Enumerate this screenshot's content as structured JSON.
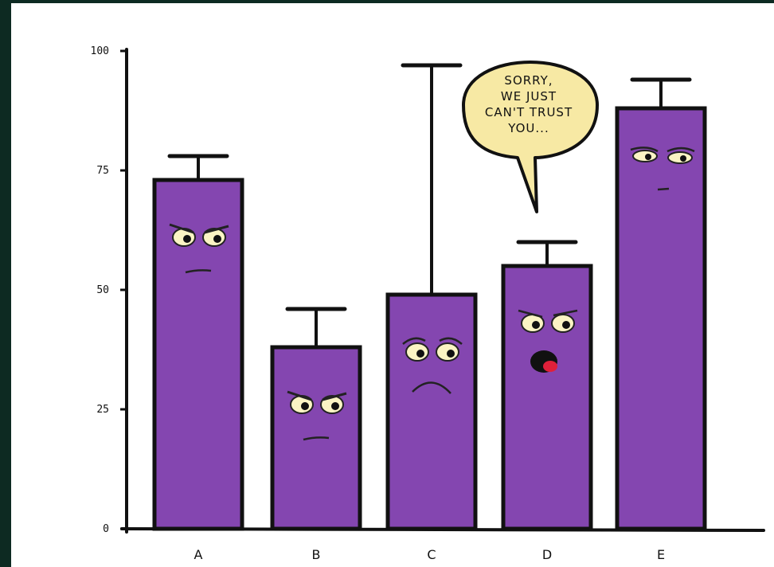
{
  "chart_data": {
    "type": "bar",
    "title": "",
    "xlabel": "",
    "ylabel": "",
    "categories": [
      "A",
      "B",
      "C",
      "D",
      "E"
    ],
    "values": [
      73,
      38,
      49,
      55,
      88
    ],
    "error_upper": [
      78,
      46,
      97,
      60,
      94
    ],
    "ylim": [
      0,
      100
    ],
    "yticks": [
      0,
      25,
      50,
      75,
      100
    ],
    "ytick_labels": [
      "0",
      "25",
      "50",
      "75",
      "100"
    ],
    "grid": false,
    "bar_color": "#8446b0",
    "outline_color": "#111111"
  },
  "speech_bubble": {
    "lines": [
      "SORRY,",
      "WE JUST",
      "CAN'T TRUST",
      "YOU..."
    ],
    "fill": "#f7e9a4",
    "speaker": "D"
  },
  "faces": {
    "eye_color": "#fbf4c4",
    "mouth_color": "#e0203a",
    "expressions": [
      "grumpy",
      "grumpy",
      "worried",
      "speaking",
      "smug"
    ]
  },
  "colors": {
    "background": "#0d2a22",
    "panel": "#ffffff"
  }
}
